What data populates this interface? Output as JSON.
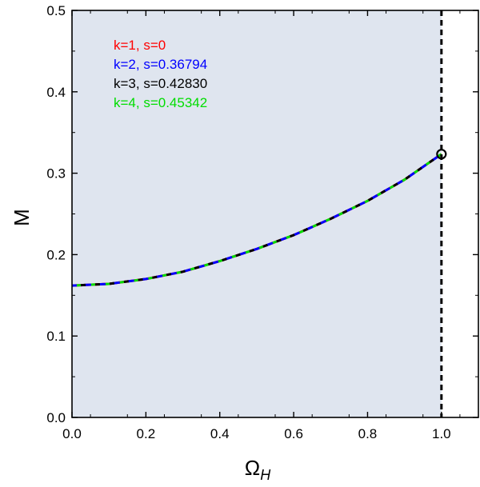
{
  "chart_data": {
    "type": "line",
    "title": "",
    "xlabel_main": "Ω",
    "xlabel_sub": "H",
    "ylabel": "M",
    "xlim": [
      0.0,
      1.1
    ],
    "ylim": [
      0.0,
      0.5
    ],
    "xticks": [
      "0.0",
      "0.2",
      "0.4",
      "0.6",
      "0.8",
      "1.0"
    ],
    "xtick_values": [
      0.0,
      0.2,
      0.4,
      0.6,
      0.8,
      1.0
    ],
    "yticks": [
      "0.0",
      "0.1",
      "0.2",
      "0.3",
      "0.4",
      "0.5"
    ],
    "ytick_values": [
      0.0,
      0.1,
      0.2,
      0.3,
      0.4,
      0.5
    ],
    "shaded_region": {
      "x": [
        0.0,
        1.0
      ],
      "color": "#dfe5ef"
    },
    "vertical_line": {
      "x": 1.0,
      "style": "dashed",
      "color": "#000000"
    },
    "endpoint_marker": {
      "x": 1.0,
      "y": 0.3235,
      "shape": "open-circle"
    },
    "legend_position": "top-left",
    "series": [
      {
        "name": "k=1, s=0",
        "color": "#ff0000"
      },
      {
        "name": "k=2, s=0.36794",
        "color": "#0000ff"
      },
      {
        "name": "k=3, s=0.42830",
        "color": "#000000"
      },
      {
        "name": "k=4, s=0.45342",
        "color": "#00dd00"
      }
    ],
    "x": [
      0.0,
      0.1,
      0.2,
      0.3,
      0.4,
      0.5,
      0.6,
      0.7,
      0.8,
      0.9,
      1.0
    ],
    "y": [
      0.162,
      0.164,
      0.17,
      0.179,
      0.192,
      0.207,
      0.224,
      0.244,
      0.266,
      0.292,
      0.3235
    ]
  }
}
